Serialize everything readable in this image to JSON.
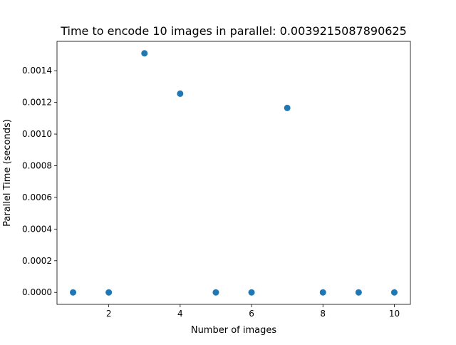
{
  "chart_data": {
    "type": "scatter",
    "title": "Time to encode 10 images in parallel: 0.0039215087890625",
    "xlabel": "Number of images",
    "ylabel": "Parallel Time (seconds)",
    "xlim": [
      0.55,
      10.45
    ],
    "ylim": [
      -7.55e-05,
      0.0015855
    ],
    "x_ticks": [
      2,
      4,
      6,
      8,
      10
    ],
    "x_tick_labels": [
      "2",
      "4",
      "6",
      "8",
      "10"
    ],
    "y_ticks": [
      0,
      0.0002,
      0.0004,
      0.0006,
      0.0008,
      0.001,
      0.0012,
      0.0014
    ],
    "y_tick_labels": [
      "0.0000",
      "0.0002",
      "0.0004",
      "0.0006",
      "0.0008",
      "0.0010",
      "0.0012",
      "0.0014"
    ],
    "grid": false,
    "marker_color": "#1f77b4",
    "series": [
      {
        "x": [
          1,
          2,
          3,
          4,
          5,
          6,
          7,
          8,
          9,
          10
        ],
        "y": [
          0,
          0,
          0.00151,
          0.001255,
          0,
          0,
          0.001165,
          0,
          0,
          0
        ]
      }
    ]
  }
}
